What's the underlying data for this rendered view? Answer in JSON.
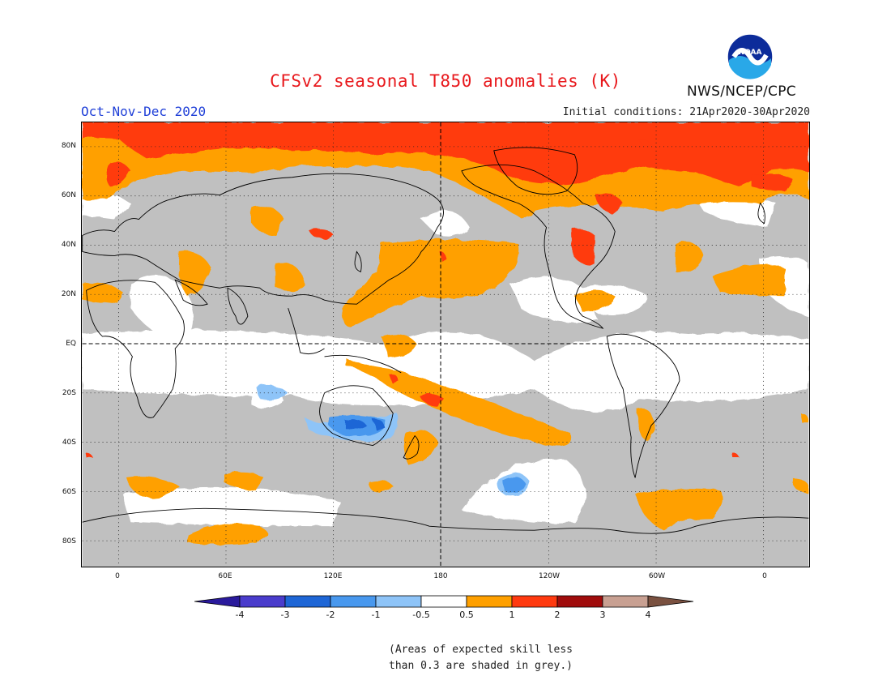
{
  "header": {
    "title": "CFSv2 seasonal T850 anomalies (K)",
    "season": "Oct-Nov-Dec 2020",
    "initial_conditions": "Initial conditions: 21Apr2020-30Apr2020",
    "agency": "NWS/NCEP/CPC",
    "logo_text": "NOAA"
  },
  "map": {
    "lat_labels": [
      "80N",
      "60N",
      "40N",
      "20N",
      "EQ",
      "20S",
      "40S",
      "60S",
      "80S"
    ],
    "lon_labels": [
      "0",
      "60E",
      "120E",
      "180",
      "120W",
      "60W",
      "0"
    ]
  },
  "colorbar": {
    "labels": [
      "-4",
      "-3",
      "-2",
      "-1",
      "-0.5",
      "0.5",
      "1",
      "2",
      "3",
      "4"
    ],
    "colors": [
      "#2a1a9c",
      "#4a3ccc",
      "#1e66d6",
      "#4898ee",
      "#8ec4f8",
      "#ffffff",
      "#ffa000",
      "#ff3a10",
      "#a00c0c",
      "#c8a092",
      "#7a5140"
    ]
  },
  "footnote": {
    "line1": "(Areas of expected skill less",
    "line2": "than 0.3 are shaded in grey.)"
  }
}
